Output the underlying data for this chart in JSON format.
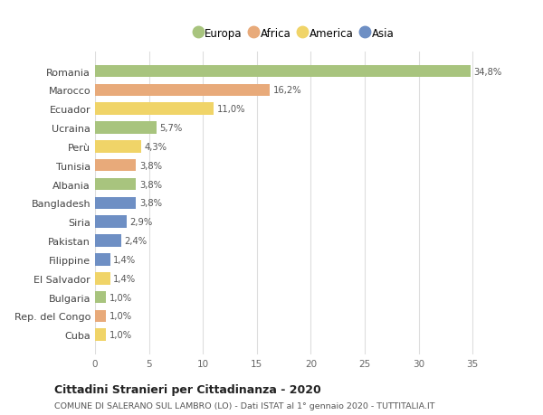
{
  "countries": [
    "Romania",
    "Marocco",
    "Ecuador",
    "Ucraina",
    "Perù",
    "Tunisia",
    "Albania",
    "Bangladesh",
    "Siria",
    "Pakistan",
    "Filippine",
    "El Salvador",
    "Bulgaria",
    "Rep. del Congo",
    "Cuba"
  ],
  "values": [
    34.8,
    16.2,
    11.0,
    5.7,
    4.3,
    3.8,
    3.8,
    3.8,
    2.9,
    2.4,
    1.4,
    1.4,
    1.0,
    1.0,
    1.0
  ],
  "labels": [
    "34,8%",
    "16,2%",
    "11,0%",
    "5,7%",
    "4,3%",
    "3,8%",
    "3,8%",
    "3,8%",
    "2,9%",
    "2,4%",
    "1,4%",
    "1,4%",
    "1,0%",
    "1,0%",
    "1,0%"
  ],
  "continent": [
    "Europa",
    "Africa",
    "America",
    "Europa",
    "America",
    "Africa",
    "Europa",
    "Asia",
    "Asia",
    "Asia",
    "Asia",
    "America",
    "Europa",
    "Africa",
    "America"
  ],
  "colors": {
    "Europa": "#a8c47e",
    "Africa": "#e8aa7a",
    "America": "#f0d468",
    "Asia": "#6e8fc4"
  },
  "title": "Cittadini Stranieri per Cittadinanza - 2020",
  "subtitle": "COMUNE DI SALERANO SUL LAMBRO (LO) - Dati ISTAT al 1° gennaio 2020 - TUTTITALIA.IT",
  "xlim": [
    0,
    37
  ],
  "xticks": [
    0,
    5,
    10,
    15,
    20,
    25,
    30,
    35
  ],
  "background_color": "#ffffff",
  "grid_color": "#dddddd",
  "bar_alpha": 1.0,
  "legend_order": [
    "Europa",
    "Africa",
    "America",
    "Asia"
  ]
}
